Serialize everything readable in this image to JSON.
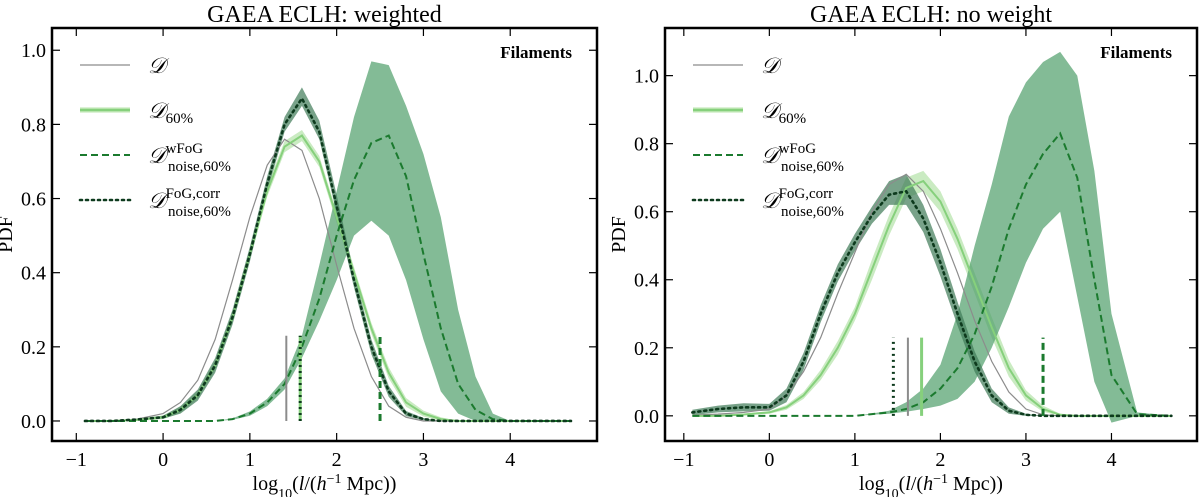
{
  "chart_data": [
    {
      "type": "line",
      "title": "GAEA ECLH: weighted",
      "xlabel": "log10(l/(h^-1 Mpc))",
      "ylabel": "PDF",
      "annotation": "Filaments",
      "xlim": [
        -1.28,
        5.0
      ],
      "ylim": [
        -0.054,
        1.06
      ],
      "xticks": [
        "−1",
        "0",
        "1",
        "2",
        "3",
        "4"
      ],
      "xtick_values": [
        -1,
        0,
        1,
        2,
        3,
        4
      ],
      "yticks": [
        "0.0",
        "0.2",
        "0.4",
        "0.6",
        "0.8",
        "1.0"
      ],
      "ytick_values": [
        0,
        0.2,
        0.4,
        0.6,
        0.8,
        1.0
      ],
      "legend_placement": "top-left",
      "grid": false,
      "x": [
        -0.9,
        -0.6,
        -0.3,
        0,
        0.2,
        0.4,
        0.6,
        0.8,
        1.0,
        1.2,
        1.4,
        1.6,
        1.8,
        2.0,
        2.2,
        2.4,
        2.6,
        2.8,
        3.0,
        3.2,
        3.4,
        3.6,
        3.8,
        4.0,
        4.3,
        4.7
      ],
      "series": [
        {
          "name": "D",
          "legend": {
            "main": "𝒟",
            "sup": "",
            "sub": ""
          },
          "style": "solid-thin",
          "color": "#8c8c8c",
          "values": [
            0,
            0,
            0.005,
            0.02,
            0.05,
            0.11,
            0.22,
            0.38,
            0.55,
            0.69,
            0.76,
            0.73,
            0.6,
            0.42,
            0.25,
            0.12,
            0.04,
            0.01,
            0,
            0,
            0,
            0,
            0,
            0,
            0,
            0
          ]
        },
        {
          "name": "D60%",
          "legend": {
            "main": "𝒟",
            "sup": "",
            "sub": "60%"
          },
          "style": "solid",
          "color": "#86d07c",
          "band_color": "#b8e4ad",
          "values": [
            0,
            0,
            0.003,
            0.01,
            0.03,
            0.07,
            0.15,
            0.28,
            0.45,
            0.62,
            0.74,
            0.77,
            0.7,
            0.55,
            0.4,
            0.25,
            0.13,
            0.05,
            0.02,
            0.005,
            0,
            0,
            0,
            0,
            0,
            0
          ],
          "lower": [
            0,
            0,
            0,
            0.005,
            0.022,
            0.06,
            0.137,
            0.265,
            0.435,
            0.605,
            0.725,
            0.755,
            0.685,
            0.535,
            0.385,
            0.235,
            0.115,
            0.038,
            0.012,
            0,
            0,
            0,
            0,
            0,
            0,
            0
          ],
          "upper": [
            0,
            0,
            0.006,
            0.015,
            0.038,
            0.08,
            0.163,
            0.295,
            0.465,
            0.635,
            0.755,
            0.785,
            0.715,
            0.565,
            0.415,
            0.265,
            0.145,
            0.062,
            0.028,
            0.01,
            0,
            0,
            0,
            0,
            0,
            0
          ]
        },
        {
          "name": "D noise,60% wFoG",
          "legend": {
            "main": "𝒟",
            "sup": "wFoG",
            "sub": "noise,60%"
          },
          "style": "dashed",
          "color": "#1b7a2e",
          "band_color": "#4f9e69",
          "values": [
            0,
            0,
            0,
            0,
            0,
            0,
            0,
            0.005,
            0.02,
            0.05,
            0.1,
            0.2,
            0.33,
            0.5,
            0.65,
            0.75,
            0.77,
            0.66,
            0.45,
            0.25,
            0.1,
            0.03,
            0.005,
            0,
            0,
            0
          ],
          "lower": [
            0,
            0,
            0,
            0,
            0,
            0,
            0,
            0.003,
            0.014,
            0.04,
            0.085,
            0.17,
            0.27,
            0.38,
            0.5,
            0.54,
            0.5,
            0.38,
            0.22,
            0.08,
            0.02,
            0,
            0,
            0,
            0,
            0
          ],
          "upper": [
            0,
            0,
            0,
            0,
            0,
            0,
            0,
            0.007,
            0.026,
            0.06,
            0.115,
            0.23,
            0.42,
            0.62,
            0.82,
            0.97,
            0.96,
            0.85,
            0.72,
            0.55,
            0.3,
            0.12,
            0.02,
            0,
            0,
            0
          ]
        },
        {
          "name": "D noise,60% FoG,corr",
          "legend": {
            "main": "𝒟",
            "sup": "FoG,corr",
            "sub": "noise,60%"
          },
          "style": "dotted",
          "color": "#0d3a1d",
          "band_color": "#3f7a57",
          "values": [
            0,
            0,
            0.004,
            0.01,
            0.03,
            0.07,
            0.15,
            0.28,
            0.45,
            0.64,
            0.8,
            0.87,
            0.78,
            0.58,
            0.38,
            0.2,
            0.08,
            0.02,
            0.005,
            0,
            0,
            0,
            0,
            0,
            0,
            0
          ],
          "lower": [
            0,
            0,
            0.002,
            0.006,
            0.02,
            0.055,
            0.13,
            0.26,
            0.43,
            0.62,
            0.78,
            0.85,
            0.76,
            0.56,
            0.36,
            0.18,
            0.065,
            0.013,
            0.002,
            0,
            0,
            0,
            0,
            0,
            0,
            0
          ],
          "upper": [
            0,
            0,
            0.006,
            0.014,
            0.04,
            0.085,
            0.17,
            0.3,
            0.47,
            0.66,
            0.82,
            0.9,
            0.81,
            0.61,
            0.4,
            0.22,
            0.095,
            0.027,
            0.008,
            0,
            0,
            0,
            0,
            0,
            0,
            0
          ]
        }
      ],
      "median_markers": [
        {
          "series": "D",
          "x": 1.42,
          "height": 0.23
        },
        {
          "series": "D60%",
          "x": 1.58,
          "height": 0.23
        },
        {
          "series": "D noise,60% FoG,corr",
          "x": 1.58,
          "height": 0.23
        },
        {
          "series": "D noise,60% wFoG",
          "x": 2.5,
          "height": 0.23
        }
      ]
    },
    {
      "type": "line",
      "title": "GAEA ECLH: no weight",
      "xlabel": "log10(l/(h^-1 Mpc))",
      "ylabel": "PDF",
      "annotation": "Filaments",
      "xlim": [
        -1.22,
        5.0
      ],
      "ylim": [
        -0.074,
        1.14
      ],
      "xticks": [
        "−1",
        "0",
        "1",
        "2",
        "3",
        "4"
      ],
      "xtick_values": [
        -1,
        0,
        1,
        2,
        3,
        4
      ],
      "yticks": [
        "0.0",
        "0.2",
        "0.4",
        "0.6",
        "0.8",
        "1.0"
      ],
      "ytick_values": [
        0,
        0.2,
        0.4,
        0.6,
        0.8,
        1.0
      ],
      "legend_placement": "top-left",
      "grid": false,
      "x": [
        -0.9,
        -0.6,
        -0.3,
        0,
        0.2,
        0.4,
        0.6,
        0.8,
        1.0,
        1.2,
        1.4,
        1.6,
        1.8,
        2.0,
        2.2,
        2.4,
        2.6,
        2.8,
        3.0,
        3.2,
        3.4,
        3.6,
        3.8,
        4.0,
        4.3,
        4.7
      ],
      "series": [
        {
          "name": "D",
          "legend": {
            "main": "𝒟",
            "sup": "",
            "sub": ""
          },
          "style": "solid-thin",
          "color": "#8c8c8c",
          "values": [
            0.002,
            0.005,
            0.01,
            0.02,
            0.06,
            0.13,
            0.23,
            0.36,
            0.48,
            0.6,
            0.68,
            0.71,
            0.66,
            0.55,
            0.42,
            0.28,
            0.16,
            0.07,
            0.02,
            0.003,
            0,
            0,
            0,
            0,
            0,
            0
          ]
        },
        {
          "name": "D60%",
          "legend": {
            "main": "𝒟",
            "sup": "",
            "sub": "60%"
          },
          "style": "solid",
          "color": "#86d07c",
          "band_color": "#b8e4ad",
          "values": [
            0,
            0,
            0.004,
            0.01,
            0.025,
            0.06,
            0.12,
            0.2,
            0.3,
            0.43,
            0.56,
            0.67,
            0.69,
            0.63,
            0.52,
            0.39,
            0.26,
            0.14,
            0.06,
            0.02,
            0.003,
            0,
            0,
            0,
            0,
            0
          ],
          "lower": [
            0,
            0,
            0.002,
            0.006,
            0.018,
            0.05,
            0.105,
            0.18,
            0.28,
            0.4,
            0.53,
            0.64,
            0.66,
            0.6,
            0.49,
            0.36,
            0.23,
            0.115,
            0.045,
            0.012,
            0,
            0,
            0,
            0,
            0,
            0
          ],
          "upper": [
            0,
            0,
            0.006,
            0.014,
            0.032,
            0.07,
            0.135,
            0.22,
            0.32,
            0.46,
            0.59,
            0.7,
            0.72,
            0.66,
            0.55,
            0.42,
            0.29,
            0.165,
            0.075,
            0.03,
            0.006,
            0,
            0,
            0,
            0,
            0
          ]
        },
        {
          "name": "D noise,60% wFoG",
          "legend": {
            "main": "𝒟",
            "sup": "wFoG",
            "sub": "noise,60%"
          },
          "style": "dashed",
          "color": "#1b7a2e",
          "band_color": "#4f9e69",
          "values": [
            0,
            0,
            0,
            0,
            0,
            0,
            0,
            0,
            0,
            0.005,
            0.01,
            0.02,
            0.04,
            0.08,
            0.14,
            0.24,
            0.38,
            0.55,
            0.68,
            0.77,
            0.83,
            0.7,
            0.4,
            0.12,
            0.005,
            0
          ],
          "lower": [
            0,
            0,
            0,
            0,
            0,
            0,
            0,
            0,
            0,
            0.003,
            0.006,
            0.012,
            0.02,
            0.03,
            0.05,
            0.1,
            0.2,
            0.32,
            0.45,
            0.55,
            0.6,
            0.35,
            0.1,
            -0.02,
            0,
            0
          ],
          "upper": [
            0,
            0,
            0,
            0,
            0,
            0,
            0,
            0,
            0,
            0.007,
            0.015,
            0.04,
            0.08,
            0.15,
            0.3,
            0.5,
            0.68,
            0.88,
            0.98,
            1.04,
            1.07,
            1.0,
            0.72,
            0.3,
            0.01,
            0
          ]
        },
        {
          "name": "D noise,60% FoG,corr",
          "legend": {
            "main": "𝒟",
            "sup": "FoG,corr",
            "sub": "noise,60%"
          },
          "style": "dotted",
          "color": "#0d3a1d",
          "band_color": "#3f7a57",
          "values": [
            0.01,
            0.02,
            0.025,
            0.025,
            0.06,
            0.16,
            0.3,
            0.42,
            0.51,
            0.59,
            0.65,
            0.66,
            0.58,
            0.45,
            0.3,
            0.16,
            0.06,
            0.015,
            0.003,
            0,
            0,
            0,
            0,
            0,
            0,
            0
          ],
          "lower": [
            0.002,
            0.01,
            0.013,
            0.015,
            0.04,
            0.135,
            0.275,
            0.395,
            0.485,
            0.565,
            0.62,
            0.62,
            0.54,
            0.41,
            0.265,
            0.13,
            0.04,
            0.006,
            0,
            0,
            0,
            0,
            0,
            0,
            0,
            0
          ],
          "upper": [
            0.018,
            0.03,
            0.037,
            0.035,
            0.08,
            0.185,
            0.325,
            0.445,
            0.535,
            0.615,
            0.69,
            0.71,
            0.62,
            0.49,
            0.335,
            0.19,
            0.08,
            0.025,
            0.006,
            0,
            0,
            0,
            0,
            0,
            0,
            0
          ]
        }
      ],
      "median_markers": [
        {
          "series": "D noise,60% FoG,corr",
          "x": 1.45,
          "height": 0.23
        },
        {
          "series": "D",
          "x": 1.62,
          "height": 0.23
        },
        {
          "series": "D60%",
          "x": 1.78,
          "height": 0.23
        },
        {
          "series": "D noise,60% wFoG",
          "x": 3.2,
          "height": 0.23
        }
      ]
    }
  ]
}
